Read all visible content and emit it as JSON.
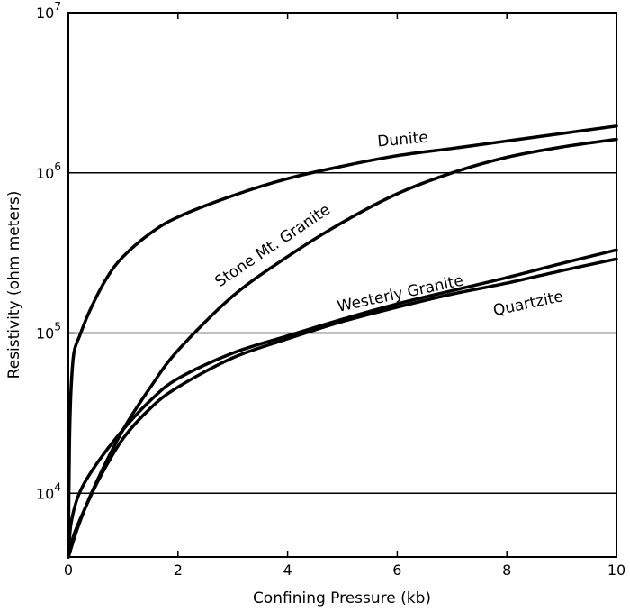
{
  "chart_data": {
    "type": "line",
    "title": "",
    "xlabel": "Confining Pressure (kb)",
    "ylabel": "Resistivity (ohm meters)",
    "xlim": [
      0,
      10
    ],
    "ylim": [
      4000,
      10000000
    ],
    "yscale": "log",
    "x_ticks": [
      "0",
      "2",
      "4",
      "6",
      "8",
      "10"
    ],
    "y_ticks": [
      {
        "base": "10",
        "exp": "4",
        "value": 10000
      },
      {
        "base": "10",
        "exp": "5",
        "value": 100000
      },
      {
        "base": "10",
        "exp": "6",
        "value": 1000000
      },
      {
        "base": "10",
        "exp": "7",
        "value": 10000000
      }
    ],
    "gridlines_y": [
      10000,
      100000,
      1000000
    ],
    "series": [
      {
        "name": "Dunite",
        "x": [
          0,
          0.02,
          0.05,
          0.1,
          0.2,
          0.4,
          0.7,
          1.0,
          1.5,
          2.0,
          3.0,
          4.0,
          5.0,
          6.0,
          7.0,
          8.0,
          9.0,
          10.0
        ],
        "y": [
          4000,
          20000,
          45000,
          75000,
          95000,
          140000,
          220000,
          300000,
          420000,
          530000,
          720000,
          920000,
          1100000,
          1280000,
          1420000,
          1580000,
          1760000,
          1960000
        ]
      },
      {
        "name": "Stone Mt. Granite",
        "x": [
          0,
          0.2,
          0.5,
          1.0,
          1.5,
          2.0,
          3.0,
          4.0,
          5.0,
          6.0,
          7.0,
          8.0,
          9.0,
          10.0
        ],
        "y": [
          4000,
          6500,
          11500,
          25000,
          46000,
          78000,
          170000,
          300000,
          490000,
          740000,
          1000000,
          1250000,
          1450000,
          1620000
        ]
      },
      {
        "name": "Westerly Granite",
        "x": [
          0,
          0.05,
          0.2,
          0.5,
          1.0,
          1.5,
          2.0,
          3.0,
          4.0,
          5.0,
          6.0,
          7.0,
          8.0,
          9.0,
          10.0
        ],
        "y": [
          4000,
          6500,
          10000,
          15000,
          25000,
          38000,
          52000,
          75000,
          96000,
          122000,
          152000,
          184000,
          222000,
          272000,
          330000
        ]
      },
      {
        "name": "Quartzite",
        "x": [
          0,
          0.1,
          0.3,
          0.6,
          1.0,
          1.5,
          2.0,
          3.0,
          4.0,
          5.0,
          6.0,
          7.0,
          8.0,
          9.0,
          10.0
        ],
        "y": [
          4000,
          5500,
          8000,
          13000,
          22000,
          34000,
          46000,
          70000,
          92000,
          118000,
          145000,
          175000,
          205000,
          245000,
          290000
        ]
      }
    ],
    "annotations": [
      "Dunite",
      "Stone Mt. Granite",
      "Westerly Granite",
      "Quartzite"
    ]
  }
}
